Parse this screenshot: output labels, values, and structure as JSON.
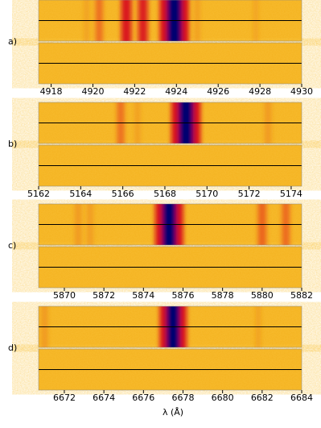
{
  "chart_data": [
    {
      "type": "spectrum-image",
      "label": "a)",
      "xlim": [
        4917.4,
        4930
      ],
      "xticks": [
        4918,
        4920,
        4922,
        4924,
        4926,
        4928,
        4930
      ],
      "x": [
        4919.7,
        4920.3,
        4921.6,
        4922.4,
        4923.9,
        4925.0,
        4927.8
      ],
      "values": [
        0.15,
        0.35,
        0.6,
        0.55,
        1.0,
        0.2,
        0.12
      ]
    },
    {
      "type": "spectrum-image",
      "label": "b)",
      "xlim": [
        5162,
        5174.5
      ],
      "xticks": [
        5162,
        5164,
        5166,
        5168,
        5170,
        5172,
        5174
      ],
      "x": [
        5165.9,
        5166.7,
        5169.0,
        5172.9
      ],
      "values": [
        0.35,
        0.2,
        1.0,
        0.3
      ]
    },
    {
      "type": "spectrum-image",
      "label": "c)",
      "xlim": [
        5868.7,
        5882
      ],
      "xticks": [
        5870,
        5872,
        5874,
        5876,
        5878,
        5880,
        5882
      ],
      "x": [
        5870.7,
        5871.3,
        5875.3,
        5880.0,
        5881.2
      ],
      "values": [
        0.3,
        0.25,
        0.95,
        0.45,
        0.4
      ]
    },
    {
      "type": "spectrum-image",
      "label": "d)",
      "xlim": [
        6670.7,
        6684
      ],
      "xticks": [
        6672,
        6674,
        6676,
        6678,
        6680,
        6682,
        6684
      ],
      "x": [
        6671.0,
        6677.5,
        6681.8
      ],
      "values": [
        0.3,
        0.9,
        0.15
      ]
    },
    {
      "type": "axis-label",
      "title": "λ (Å)"
    }
  ]
}
